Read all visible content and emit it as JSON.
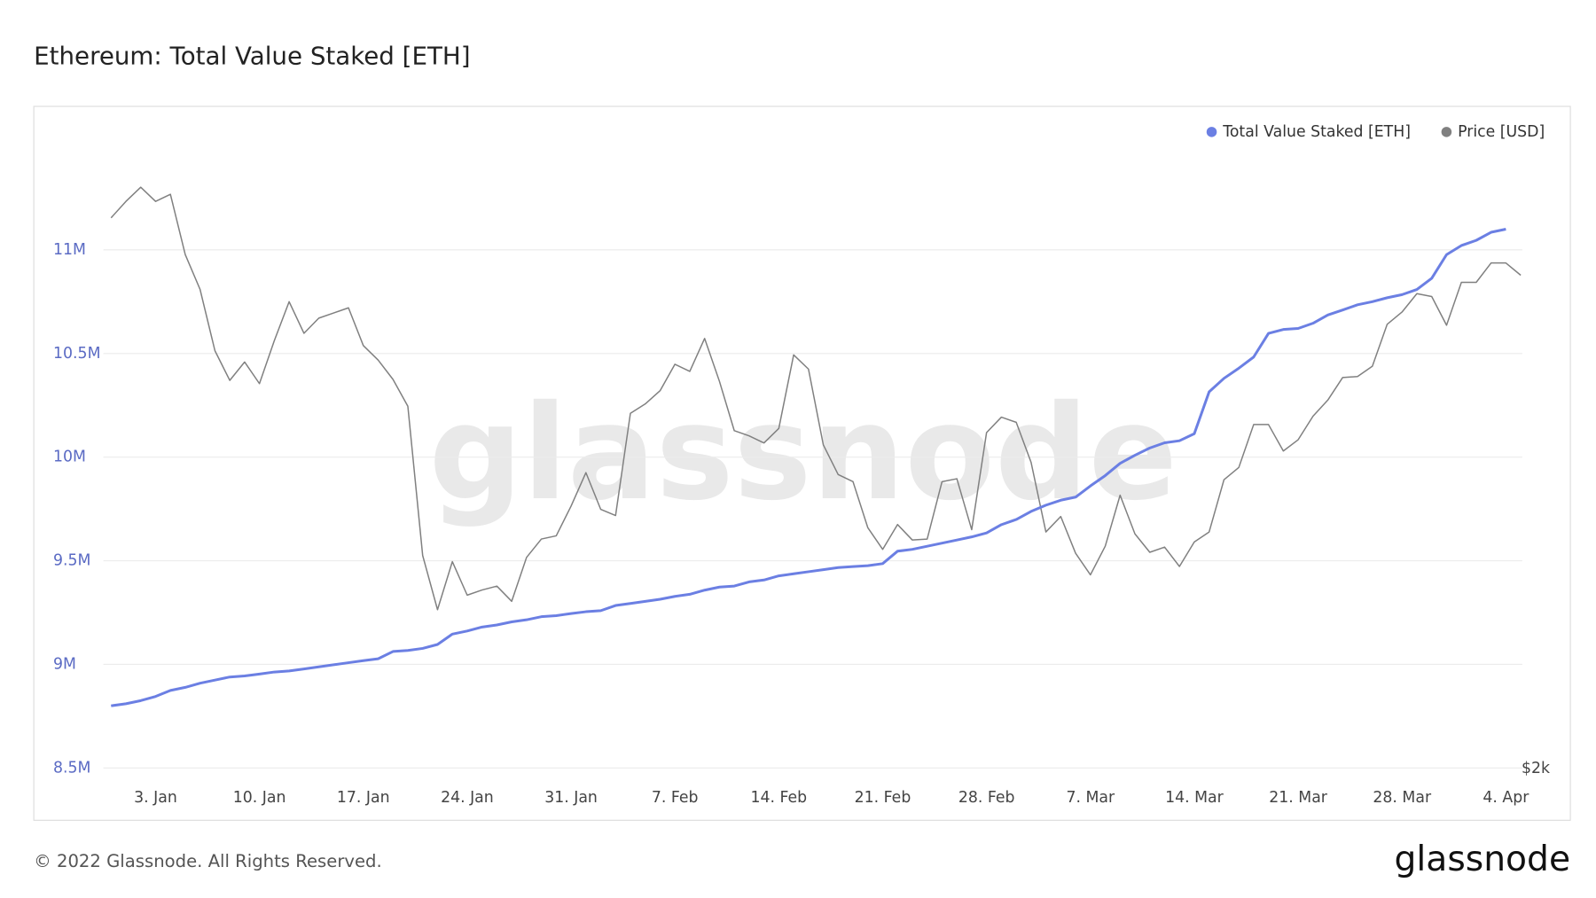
{
  "chart_data": {
    "type": "line",
    "title": "Ethereum: Total Value Staked [ETH]",
    "x": [
      "31. Dec",
      "1. Jan",
      "2. Jan",
      "3. Jan",
      "4. Jan",
      "5. Jan",
      "6. Jan",
      "7. Jan",
      "8. Jan",
      "9. Jan",
      "10. Jan",
      "11. Jan",
      "12. Jan",
      "13. Jan",
      "14. Jan",
      "15. Jan",
      "16. Jan",
      "17. Jan",
      "18. Jan",
      "19. Jan",
      "20. Jan",
      "21. Jan",
      "22. Jan",
      "23. Jan",
      "24. Jan",
      "25. Jan",
      "26. Jan",
      "27. Jan",
      "28. Jan",
      "29. Jan",
      "30. Jan",
      "31. Jan",
      "1. Feb",
      "2. Feb",
      "3. Feb",
      "4. Feb",
      "5. Feb",
      "6. Feb",
      "7. Feb",
      "8. Feb",
      "9. Feb",
      "10. Feb",
      "11. Feb",
      "12. Feb",
      "13. Feb",
      "14. Feb",
      "15. Feb",
      "16. Feb",
      "17. Feb",
      "18. Feb",
      "19. Feb",
      "20. Feb",
      "21. Feb",
      "22. Feb",
      "23. Feb",
      "24. Feb",
      "25. Feb",
      "26. Feb",
      "27. Feb",
      "28. Feb",
      "1. Mar",
      "2. Mar",
      "3. Mar",
      "4. Mar",
      "5. Mar",
      "6. Mar",
      "7. Mar",
      "8. Mar",
      "9. Mar",
      "10. Mar",
      "11. Mar",
      "12. Mar",
      "13. Mar",
      "14. Mar",
      "15. Mar",
      "16. Mar",
      "17. Mar",
      "18. Mar",
      "19. Mar",
      "20. Mar",
      "21. Mar",
      "22. Mar",
      "23. Mar",
      "24. Mar",
      "25. Mar",
      "26. Mar",
      "27. Mar",
      "28. Mar",
      "29. Mar",
      "30. Mar",
      "31. Mar",
      "1. Apr",
      "2. Apr",
      "3. Apr",
      "4. Apr",
      "5. Apr"
    ],
    "series": [
      {
        "name": "Total Value Staked [ETH]",
        "color": "#6b7fe3",
        "values": [
          8800000,
          8810000,
          8825000,
          8845000,
          8874000,
          8889000,
          8909000,
          8924000,
          8939000,
          8944000,
          8953000,
          8963000,
          8968000,
          8978000,
          8988000,
          8998000,
          9008000,
          9018000,
          9027000,
          9062000,
          9067000,
          9077000,
          9096000,
          9146000,
          9161000,
          9180000,
          9190000,
          9205000,
          9215000,
          9230000,
          9235000,
          9245000,
          9254000,
          9259000,
          9284000,
          9294000,
          9304000,
          9314000,
          9328000,
          9338000,
          9358000,
          9373000,
          9378000,
          9398000,
          9407000,
          9427000,
          9437000,
          9447000,
          9457000,
          9467000,
          9472000,
          9476000,
          9486000,
          9546000,
          9555000,
          9570000,
          9585000,
          9600000,
          9615000,
          9634000,
          9674000,
          9699000,
          9738000,
          9768000,
          9792000,
          9807000,
          9861000,
          9911000,
          9970000,
          10009000,
          10044000,
          10069000,
          10079000,
          10113000,
          10315000,
          10380000,
          10429000,
          10483000,
          10597000,
          10616000,
          10621000,
          10646000,
          10686000,
          10710000,
          10735000,
          10750000,
          10769000,
          10784000,
          10809000,
          10863000,
          10977000,
          11021000,
          11046000,
          11085000,
          11100000,
          null
        ]
      },
      {
        "name": "Price [USD]",
        "color": "#808080",
        "axis": "y2",
        "values": [
          3708,
          3759,
          3803,
          3759,
          3781,
          3594,
          3486,
          3296,
          3204,
          3261,
          3194,
          3327,
          3448,
          3350,
          3397,
          3413,
          3429,
          3312,
          3267,
          3207,
          3124,
          2661,
          2493,
          2642,
          2538,
          2554,
          2566,
          2519,
          2655,
          2712,
          2722,
          2814,
          2918,
          2804,
          2785,
          3102,
          3131,
          3172,
          3254,
          3232,
          3334,
          3201,
          3048,
          3032,
          3010,
          3055,
          3283,
          3239,
          3004,
          2912,
          2890,
          2747,
          2680,
          2757,
          2709,
          2712,
          2890,
          2899,
          2741,
          3042,
          3090,
          3074,
          2950,
          2734,
          2782,
          2668,
          2601,
          2690,
          2848,
          2728,
          2671,
          2687,
          2627,
          2703,
          2734,
          2896,
          2934,
          3067,
          3067,
          2985,
          3020,
          3093,
          3143,
          3213,
          3216,
          3248,
          3378,
          3416,
          3473,
          3464,
          3375,
          3508,
          3508,
          3568,
          3568,
          3530
        ]
      }
    ],
    "xticks": [
      "3. Jan",
      "10. Jan",
      "17. Jan",
      "24. Jan",
      "31. Jan",
      "7. Feb",
      "14. Feb",
      "21. Feb",
      "28. Feb",
      "7. Mar",
      "14. Mar",
      "21. Mar",
      "28. Mar",
      "4. Apr"
    ],
    "ylim": [
      8450000,
      11500000
    ],
    "yticks": [
      {
        "value": 8500000,
        "label": "8.5M"
      },
      {
        "value": 9000000,
        "label": "9M"
      },
      {
        "value": 9500000,
        "label": "9.5M"
      },
      {
        "value": 10000000,
        "label": "10M"
      },
      {
        "value": 10500000,
        "label": "10.5M"
      },
      {
        "value": 11000000,
        "label": "11M"
      }
    ],
    "y2lim": [
      1970,
      3930
    ],
    "y2ticks": [
      {
        "value": 2000,
        "label": "$2k"
      }
    ],
    "grid": true,
    "legend": "top-right"
  },
  "watermark": "glassnode",
  "footer": {
    "copyright": "© 2022 Glassnode. All Rights Reserved.",
    "logo": "glassnode"
  }
}
